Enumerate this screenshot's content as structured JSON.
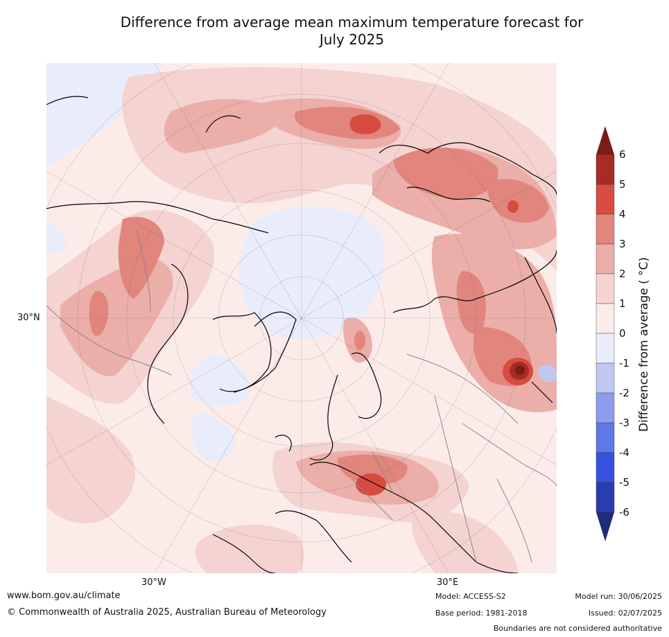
{
  "title_line1": "Difference from average mean maximum temperature forecast for",
  "title_line2": "July 2025",
  "map": {
    "projection": "north polar stereographic",
    "lat_labels": [
      "30°N"
    ],
    "lon_labels": [
      "30°W",
      "30°E"
    ],
    "gridlines": "dotted",
    "colors": {
      "neg1_0": "#e8ecfb",
      "pos0_1": "#fbecea",
      "pos1_2": "#f4d3d0",
      "pos2_3": "#ebaea8",
      "pos3_4": "#e1857d",
      "pos4_5": "#d74b40",
      "pos5_6": "#a82b25",
      "over6": "#7a1c17",
      "coast": "#000000",
      "borders": "#888888"
    }
  },
  "colorbar": {
    "label": "Difference from average ( °C)",
    "ticks": [
      "6",
      "5",
      "4",
      "3",
      "2",
      "1",
      "0",
      "-1",
      "-2",
      "-3",
      "-4",
      "-5",
      "-6"
    ],
    "levels": [
      6,
      5,
      4,
      3,
      2,
      1,
      0,
      -1,
      -2,
      -3,
      -4,
      -5,
      -6
    ],
    "band_colors": [
      "#a82b25",
      "#d74b40",
      "#e1857d",
      "#ebaea8",
      "#f4d3d0",
      "#fbecea",
      "#e8ecfb",
      "#c0c8f2",
      "#8c9cef",
      "#5e78e8",
      "#3553e0",
      "#2a3db0"
    ],
    "top_arrow_color": "#7a1c17",
    "bottom_arrow_color": "#222a7a"
  },
  "footer": {
    "url": "www.bom.gov.au/climate",
    "copyright": "© Commonwealth of Australia 2025, Australian Bureau of Meteorology",
    "model": "Model: ACCESS-S2",
    "base_period": "Base period: 1981-2018",
    "model_run": "Model run: 30/06/2025",
    "issued": "Issued: 02/07/2025",
    "disclaimer": "Boundaries are not considered authoritative"
  }
}
